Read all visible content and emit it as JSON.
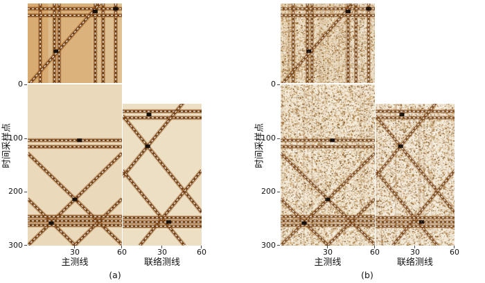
{
  "chart_data": {
    "type": "heatmap",
    "description": "Two seismic-cube section displays: (a) clean sections, (b) same sections with random noise. Each shows a horizontal slice (top), inline section (bottom-left) and crossline section (bottom-right) with dipping and flat reflection events.",
    "shared": {
      "ylabel": "时间采样点",
      "y_ticks": [
        0,
        100,
        200,
        300
      ],
      "ylim": [
        0,
        300
      ],
      "band_color": "#c98030",
      "noise_palette": [
        "#ffffff",
        "#f6ecd9",
        "#dcbf92",
        "#bb8a47",
        "#9a6527",
        "#6f4210"
      ],
      "sections": [
        {
          "key": "timeslice",
          "xlabel": "",
          "x_ticks": [],
          "xdomain": [
            0,
            60
          ],
          "ydomain": [
            0,
            60
          ],
          "bg": {
            "a": "#e3c89e",
            "b": "#efe5d0"
          },
          "streaks": 46,
          "bands": [
            {
              "x0": 0,
              "x1": 13,
              "a": 0.4
            },
            {
              "x0": 13,
              "x1": 21,
              "a": 0.18
            },
            {
              "x0": 21,
              "x1": 41,
              "a": 0.3
            },
            {
              "x0": 41,
              "x1": 60,
              "a": 0.1
            }
          ],
          "events": [
            [
              8,
              0,
              8,
              60
            ],
            [
              17,
              0,
              17,
              60
            ],
            [
              20,
              0,
              20,
              60
            ],
            [
              43,
              0,
              43,
              60
            ],
            [
              48,
              0,
              48,
              60
            ],
            [
              56,
              0,
              56,
              60
            ],
            [
              0,
              4,
              60,
              4
            ],
            [
              0,
              9,
              60,
              9
            ],
            [
              0,
              62,
              46,
              0
            ]
          ],
          "blobs": [
            [
              43,
              6
            ],
            [
              56,
              4
            ],
            [
              18,
              36
            ]
          ]
        },
        {
          "key": "inline",
          "xlabel": "主测线",
          "x_ticks": [
            30,
            60
          ],
          "xdomain": [
            0,
            60
          ],
          "ydomain": [
            0,
            300
          ],
          "bg": {
            "a": "#ead9bb",
            "b": "#f1e7d3"
          },
          "streaks": 20,
          "bands": [],
          "events": [
            [
              0,
              104,
              60,
              104
            ],
            [
              0,
              116,
              60,
              116
            ],
            [
              0,
              128,
              60,
              298
            ],
            [
              0,
              300,
              60,
              128
            ],
            [
              0,
              213,
              60,
              385
            ],
            [
              0,
              385,
              60,
              213
            ],
            [
              0,
              246,
              60,
              246
            ],
            [
              0,
              254,
              60,
              254
            ],
            [
              0,
              262,
              60,
              262
            ]
          ],
          "blobs": [
            [
              30,
              214
            ],
            [
              33,
              104
            ],
            [
              15,
              258
            ]
          ]
        },
        {
          "key": "crossline",
          "xlabel": "联络测线",
          "x_ticks": [
            30,
            60
          ],
          "xdomain": [
            0,
            60
          ],
          "ydomain": [
            36,
            300
          ],
          "bg": {
            "a": "#ecdfc4",
            "b": "#f2e9d8"
          },
          "streaks": 18,
          "bands": [],
          "events": [
            [
              0,
              50,
              60,
              50
            ],
            [
              0,
              62,
              60,
              62
            ],
            [
              0,
              58,
              60,
              238
            ],
            [
              0,
              172,
              60,
              -8
            ],
            [
              0,
              160,
              47,
              300
            ],
            [
              13,
              300,
              60,
              160
            ],
            [
              0,
              248,
              60,
              248
            ],
            [
              0,
              256,
              60,
              256
            ],
            [
              0,
              264,
              60,
              264
            ]
          ],
          "blobs": [
            [
              19,
              115
            ],
            [
              35,
              256
            ],
            [
              20,
              56
            ]
          ]
        }
      ]
    },
    "panels": [
      {
        "id": "a",
        "caption": "(a)",
        "noisy": false
      },
      {
        "id": "b",
        "caption": "(b)",
        "noisy": true
      }
    ]
  }
}
